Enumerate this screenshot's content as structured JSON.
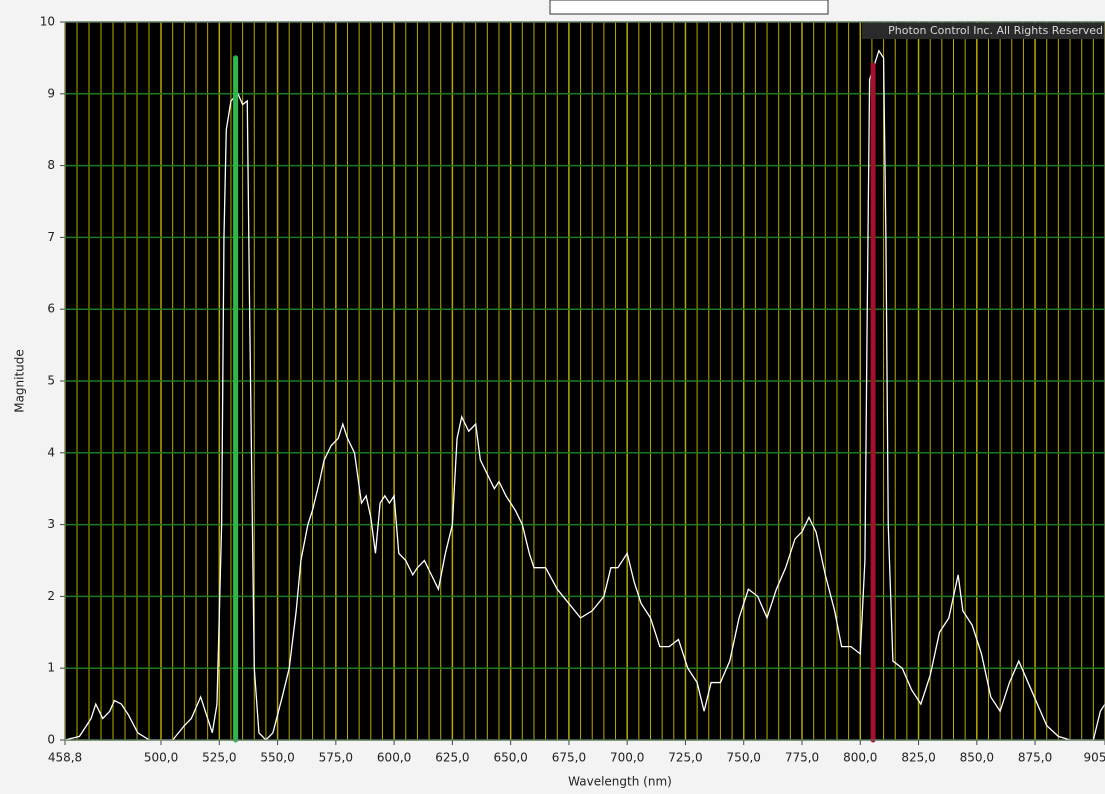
{
  "chart_data": {
    "type": "line",
    "x_label": "Wavelength (nm)",
    "y_label": "Magnitude",
    "annotation": "Photon Control Inc. All Rights Reserved",
    "xlim": [
      458.8,
      905
    ],
    "ylim": [
      0,
      10
    ],
    "xticks": [
      {
        "value": 458.8,
        "label": "458,8"
      },
      {
        "value": 500,
        "label": "500,0"
      },
      {
        "value": 525,
        "label": "525,0"
      },
      {
        "value": 550,
        "label": "550,0"
      },
      {
        "value": 575,
        "label": "575,0"
      },
      {
        "value": 600,
        "label": "600,0"
      },
      {
        "value": 625,
        "label": "625,0"
      },
      {
        "value": 650,
        "label": "650,0"
      },
      {
        "value": 675,
        "label": "675,0"
      },
      {
        "value": 700,
        "label": "700,0"
      },
      {
        "value": 725,
        "label": "725,0"
      },
      {
        "value": 750,
        "label": "750,0"
      },
      {
        "value": 775,
        "label": "775,0"
      },
      {
        "value": 800,
        "label": "800,0"
      },
      {
        "value": 825,
        "label": "825,0"
      },
      {
        "value": 850,
        "label": "850,0"
      },
      {
        "value": 875,
        "label": "875,0"
      },
      {
        "value": 905,
        "label": "905"
      }
    ],
    "yticks": [
      0,
      1,
      2,
      3,
      4,
      5,
      6,
      7,
      8,
      9,
      10
    ],
    "grid": true,
    "grid_color_x": "#b8a800",
    "grid_color_y": "#1f7a1f",
    "background": "#000000",
    "x": [
      458.8,
      465,
      470,
      472,
      475,
      478,
      480,
      483,
      486,
      490,
      495,
      505,
      510,
      513,
      517,
      520,
      522,
      524,
      526,
      527,
      528,
      530,
      533,
      535,
      537,
      538,
      540,
      542,
      545,
      548,
      552,
      555,
      558,
      560,
      563,
      565,
      568,
      570,
      573,
      576,
      578,
      580,
      583,
      586,
      588,
      590,
      592,
      594,
      596,
      598,
      600,
      602,
      605,
      608,
      610,
      613,
      616,
      619,
      622,
      625,
      627,
      629,
      632,
      635,
      637,
      640,
      643,
      645,
      648,
      652,
      655,
      658,
      660,
      665,
      670,
      675,
      680,
      685,
      690,
      693,
      696,
      700,
      703,
      706,
      710,
      714,
      718,
      722,
      726,
      730,
      733,
      736,
      740,
      744,
      748,
      752,
      756,
      760,
      764,
      768,
      772,
      775,
      778,
      781,
      785,
      789,
      792,
      796,
      800,
      802,
      803,
      804,
      806,
      808,
      810,
      811,
      812,
      814,
      818,
      822,
      826,
      830,
      834,
      838,
      842,
      844,
      848,
      852,
      856,
      860,
      864,
      868,
      872,
      876,
      880,
      885,
      890,
      900,
      903,
      905
    ],
    "series": [
      {
        "name": "Magnitude",
        "color": "#ffffff",
        "values": [
          0,
          0.05,
          0.3,
          0.5,
          0.3,
          0.4,
          0.55,
          0.5,
          0.35,
          0.1,
          0,
          0,
          0.2,
          0.3,
          0.6,
          0.3,
          0.1,
          0.5,
          3,
          7,
          8.5,
          8.9,
          9.0,
          8.85,
          8.9,
          6,
          1,
          0.1,
          0,
          0.1,
          0.6,
          1.0,
          1.8,
          2.5,
          3.0,
          3.2,
          3.6,
          3.9,
          4.1,
          4.2,
          4.4,
          4.2,
          4.0,
          3.3,
          3.4,
          3.1,
          2.6,
          3.3,
          3.4,
          3.3,
          3.4,
          2.6,
          2.5,
          2.3,
          2.4,
          2.5,
          2.3,
          2.1,
          2.6,
          3.0,
          4.2,
          4.5,
          4.3,
          4.4,
          3.9,
          3.7,
          3.5,
          3.6,
          3.4,
          3.2,
          3.0,
          2.6,
          2.4,
          2.4,
          2.1,
          1.9,
          1.7,
          1.8,
          2.0,
          2.4,
          2.4,
          2.6,
          2.2,
          1.9,
          1.7,
          1.3,
          1.3,
          1.4,
          1.0,
          0.8,
          0.4,
          0.8,
          0.8,
          1.1,
          1.7,
          2.1,
          2.0,
          1.7,
          2.1,
          2.4,
          2.8,
          2.9,
          3.1,
          2.9,
          2.3,
          1.8,
          1.3,
          1.3,
          1.2,
          2.5,
          6,
          9.2,
          9.4,
          9.6,
          9.5,
          7,
          3,
          1.1,
          1.0,
          0.7,
          0.5,
          0.9,
          1.5,
          1.7,
          2.3,
          1.8,
          1.6,
          1.2,
          0.6,
          0.4,
          0.8,
          1.1,
          0.8,
          0.5,
          0.2,
          0.05,
          0,
          0,
          0.4,
          0.5
        ]
      }
    ],
    "cursors": [
      {
        "x": 532,
        "top": 9.5,
        "color": "#2db84d"
      },
      {
        "x": 805.5,
        "top": 9.4,
        "color": "#a3102b"
      }
    ]
  }
}
